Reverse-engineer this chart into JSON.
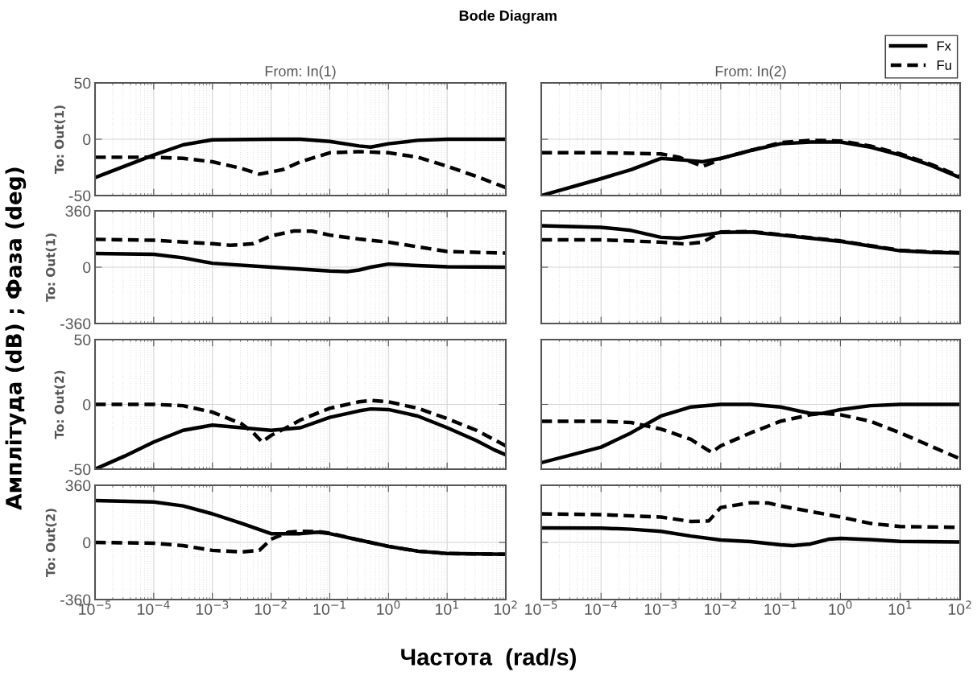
{
  "chart_data": [
    {
      "type": "line",
      "title": "From: In(1)",
      "ylabel": "To: Out(1)",
      "annotations": [
        "Bode Diagram",
        "Амплітуда (dB) ; Фаза (deg)",
        "Частота  (rad/s)"
      ],
      "log": "x",
      "grid": true,
      "tick_labels": "y",
      "xlim": [
        1e-05,
        100
      ],
      "xticks": [
        {
          "value": 1e-05,
          "label": null
        },
        {
          "value": 0.0001,
          "label": null
        },
        {
          "value": 0.001,
          "label": null
        },
        {
          "value": 0.01,
          "label": null
        },
        {
          "value": 0.1,
          "label": null
        },
        {
          "value": 1,
          "label": null
        },
        {
          "value": 10,
          "label": null
        },
        {
          "value": 100,
          "label": null
        }
      ],
      "ylim": [
        -50,
        50
      ],
      "yticks": [
        -50,
        0,
        50
      ],
      "series": [
        {
          "color": "#000000",
          "line_style": "solid",
          "x": [
            1e-05,
            3.16e-05,
            0.0001,
            0.000316,
            0.001,
            0.01,
            0.0316,
            0.1,
            0.316,
            0.5,
            1,
            3.16,
            10,
            100
          ],
          "values": [
            -34,
            -24,
            -14,
            -5,
            -0.5,
            0,
            0,
            -2,
            -6,
            -7,
            -4,
            -1,
            0,
            0
          ]
        },
        {
          "color": "#000000",
          "line_style": "dashed",
          "x": [
            1e-05,
            0.0001,
            0.000316,
            0.001,
            0.00316,
            0.0063,
            0.0158,
            0.0316,
            0.1,
            0.316,
            1,
            3.16,
            10,
            31.6,
            63,
            100
          ],
          "values": [
            -16,
            -16,
            -17,
            -20,
            -26,
            -31,
            -27,
            -20,
            -12,
            -11,
            -12,
            -16,
            -24,
            -33,
            -39,
            -43
          ]
        }
      ]
    },
    {
      "type": "line",
      "title": "From: In(2)",
      "legend": "top right",
      "log": "x",
      "grid": true,
      "tick_labels": false,
      "xlim": [
        1e-05,
        100
      ],
      "xticks": [
        {
          "value": 1e-05,
          "label": null
        },
        {
          "value": 0.0001,
          "label": null
        },
        {
          "value": 0.001,
          "label": null
        },
        {
          "value": 0.01,
          "label": null
        },
        {
          "value": 0.1,
          "label": null
        },
        {
          "value": 1,
          "label": null
        },
        {
          "value": 10,
          "label": null
        },
        {
          "value": 100,
          "label": null
        }
      ],
      "ylim": [
        -50,
        50
      ],
      "yticks": [
        {
          "value": -50,
          "label": null
        },
        {
          "value": 0,
          "label": null
        },
        {
          "value": 50,
          "label": null
        }
      ],
      "series": [
        {
          "name": "Fx",
          "color": "#000000",
          "line_style": "solid",
          "x": [
            1e-05,
            0.0001,
            0.000316,
            0.001,
            0.00316,
            0.005,
            0.01,
            0.0316,
            0.1,
            0.316,
            1,
            3.16,
            10,
            31.6,
            100
          ],
          "values": [
            -50,
            -35,
            -27,
            -17,
            -19,
            -20,
            -17,
            -10,
            -4,
            -2.5,
            -2.5,
            -7,
            -14,
            -23,
            -34
          ]
        },
        {
          "name": "Fu",
          "color": "#000000",
          "line_style": "dashed",
          "x": [
            1e-05,
            0.0001,
            0.001,
            0.002,
            0.005,
            0.0079,
            0.01,
            0.0316,
            0.1,
            0.316,
            1,
            3.16,
            10,
            31.6,
            100
          ],
          "values": [
            -12,
            -12,
            -13,
            -16,
            -24,
            -20,
            -17,
            -10,
            -3,
            -1,
            -1.5,
            -6,
            -13,
            -22,
            -33
          ]
        }
      ]
    },
    {
      "type": "line",
      "ylabel": "To: Out(1)",
      "log": "x",
      "grid": true,
      "tick_labels": "y",
      "xlim": [
        1e-05,
        100
      ],
      "xticks": [
        {
          "value": 1e-05,
          "label": null
        },
        {
          "value": 0.0001,
          "label": null
        },
        {
          "value": 0.001,
          "label": null
        },
        {
          "value": 0.01,
          "label": null
        },
        {
          "value": 0.1,
          "label": null
        },
        {
          "value": 1,
          "label": null
        },
        {
          "value": 10,
          "label": null
        },
        {
          "value": 100,
          "label": null
        }
      ],
      "ylim": [
        -360,
        360
      ],
      "yticks": [
        -360,
        0,
        360
      ],
      "series": [
        {
          "color": "#000000",
          "line_style": "solid",
          "x": [
            1e-05,
            0.0001,
            0.000316,
            0.001,
            0.01,
            0.1,
            0.2,
            0.316,
            0.5,
            1,
            3.16,
            10,
            100
          ],
          "values": [
            87,
            82,
            60,
            25,
            0,
            -24,
            -28,
            -18,
            0,
            20,
            10,
            3,
            0
          ]
        },
        {
          "color": "#000000",
          "line_style": "dashed",
          "x": [
            1e-05,
            0.0001,
            0.001,
            0.002,
            0.005,
            0.01,
            0.025,
            0.05,
            0.1,
            0.316,
            1,
            3.16,
            10,
            100
          ],
          "values": [
            178,
            172,
            150,
            140,
            150,
            200,
            232,
            230,
            205,
            180,
            160,
            130,
            100,
            90
          ]
        }
      ]
    },
    {
      "type": "line",
      "log": "x",
      "grid": true,
      "tick_labels": false,
      "xlim": [
        1e-05,
        100
      ],
      "xticks": [
        {
          "value": 1e-05,
          "label": null
        },
        {
          "value": 0.0001,
          "label": null
        },
        {
          "value": 0.001,
          "label": null
        },
        {
          "value": 0.01,
          "label": null
        },
        {
          "value": 0.1,
          "label": null
        },
        {
          "value": 1,
          "label": null
        },
        {
          "value": 10,
          "label": null
        },
        {
          "value": 100,
          "label": null
        }
      ],
      "ylim": [
        -360,
        360
      ],
      "yticks": [
        {
          "value": -360,
          "label": null
        },
        {
          "value": 0,
          "label": null
        },
        {
          "value": 360,
          "label": null
        }
      ],
      "series": [
        {
          "color": "#000000",
          "line_style": "solid",
          "x": [
            1e-05,
            0.0001,
            0.000316,
            0.001,
            0.002,
            0.005,
            0.01,
            0.0316,
            0.1,
            0.316,
            1,
            3.16,
            10,
            31.6,
            100
          ],
          "values": [
            265,
            255,
            235,
            191,
            185,
            205,
            222,
            225,
            205,
            185,
            165,
            135,
            105,
            95,
            90
          ]
        },
        {
          "color": "#000000",
          "line_style": "dashed",
          "x": [
            1e-05,
            0.0001,
            0.001,
            0.0025,
            0.005,
            0.01,
            0.0316,
            0.1,
            0.316,
            1,
            3.16,
            10,
            31.6,
            100
          ],
          "values": [
            175,
            175,
            160,
            148,
            160,
            225,
            228,
            208,
            188,
            168,
            138,
            108,
            98,
            93
          ]
        }
      ]
    },
    {
      "type": "line",
      "ylabel": "To: Out(2)",
      "log": "x",
      "grid": true,
      "tick_labels": "y",
      "xlim": [
        1e-05,
        100
      ],
      "xticks": [
        {
          "value": 1e-05,
          "label": null
        },
        {
          "value": 0.0001,
          "label": null
        },
        {
          "value": 0.001,
          "label": null
        },
        {
          "value": 0.01,
          "label": null
        },
        {
          "value": 0.1,
          "label": null
        },
        {
          "value": 1,
          "label": null
        },
        {
          "value": 10,
          "label": null
        },
        {
          "value": 100,
          "label": null
        }
      ],
      "ylim": [
        -50,
        50
      ],
      "yticks": [
        -50,
        0,
        50
      ],
      "series": [
        {
          "color": "#000000",
          "line_style": "solid",
          "x": [
            1e-05,
            3.16e-05,
            0.0001,
            0.000316,
            0.001,
            0.00316,
            0.01,
            0.0316,
            0.1,
            0.316,
            0.5,
            1,
            3.16,
            10,
            31.6,
            63,
            100
          ],
          "values": [
            -50,
            -40,
            -29,
            -20,
            -16,
            -18,
            -20,
            -18,
            -10,
            -5,
            -3.5,
            -4,
            -9,
            -18,
            -28,
            -35,
            -39
          ]
        },
        {
          "color": "#000000",
          "line_style": "dashed",
          "x": [
            1e-05,
            0.0001,
            0.000316,
            0.001,
            0.00316,
            0.005,
            0.007,
            0.01,
            0.02,
            0.0316,
            0.1,
            0.316,
            0.5,
            1,
            3.16,
            10,
            31.6,
            100
          ],
          "values": [
            0,
            0,
            -1,
            -6,
            -15,
            -22,
            -29,
            -24,
            -17,
            -12,
            -3,
            2,
            3,
            2,
            -3,
            -11,
            -20,
            -32
          ]
        }
      ]
    },
    {
      "type": "line",
      "log": "x",
      "grid": true,
      "tick_labels": false,
      "xlim": [
        1e-05,
        100
      ],
      "xticks": [
        {
          "value": 1e-05,
          "label": null
        },
        {
          "value": 0.0001,
          "label": null
        },
        {
          "value": 0.001,
          "label": null
        },
        {
          "value": 0.01,
          "label": null
        },
        {
          "value": 0.1,
          "label": null
        },
        {
          "value": 1,
          "label": null
        },
        {
          "value": 10,
          "label": null
        },
        {
          "value": 100,
          "label": null
        }
      ],
      "ylim": [
        -50,
        50
      ],
      "yticks": [
        {
          "value": -50,
          "label": null
        },
        {
          "value": 0,
          "label": null
        },
        {
          "value": 50,
          "label": null
        }
      ],
      "series": [
        {
          "color": "#000000",
          "line_style": "solid",
          "x": [
            1e-05,
            0.0001,
            0.000316,
            0.001,
            0.00316,
            0.01,
            0.0316,
            0.1,
            0.316,
            0.5,
            1,
            3.16,
            10,
            100
          ],
          "values": [
            -45,
            -33,
            -22,
            -9,
            -2,
            0,
            0,
            -2,
            -7,
            -7,
            -4,
            -1,
            0,
            0
          ]
        },
        {
          "color": "#000000",
          "line_style": "dashed",
          "x": [
            1e-05,
            0.0001,
            0.000316,
            0.001,
            0.00316,
            0.007,
            0.01,
            0.0316,
            0.1,
            0.316,
            0.5,
            1,
            3.16,
            10,
            31.6,
            100
          ],
          "values": [
            -13,
            -13,
            -14,
            -19,
            -27,
            -37,
            -32,
            -22,
            -13,
            -8,
            -7,
            -8,
            -13,
            -22,
            -32,
            -42
          ]
        }
      ]
    },
    {
      "type": "line",
      "ylabel": "To: Out(2)",
      "log": "x",
      "grid": true,
      "xlim": [
        1e-05,
        100
      ],
      "xticks": [
        {
          "value": 1e-05,
          "label": "10$^{−5}$"
        },
        {
          "value": 0.0001,
          "label": "10$^{−4}$"
        },
        {
          "value": 0.001,
          "label": "10$^{−3}$"
        },
        {
          "value": 0.01,
          "label": "10$^{−2}$"
        },
        {
          "value": 0.1,
          "label": "10$^{−1}$"
        },
        {
          "value": 1,
          "label": "10$^{0}$"
        },
        {
          "value": 10,
          "label": "10$^{1}$"
        },
        {
          "value": 100,
          "label": "10$^{2}$"
        }
      ],
      "ylim": [
        -360,
        360
      ],
      "yticks": [
        -360,
        0,
        360
      ],
      "series": [
        {
          "color": "#000000",
          "line_style": "solid",
          "x": [
            1e-05,
            0.0001,
            0.000316,
            0.001,
            0.00316,
            0.01,
            0.0316,
            0.063,
            0.1,
            0.316,
            1,
            3.16,
            10,
            100
          ],
          "values": [
            264,
            255,
            230,
            180,
            120,
            55,
            55,
            65,
            55,
            15,
            -25,
            -55,
            -70,
            -75
          ]
        },
        {
          "color": "#000000",
          "line_style": "dashed",
          "x": [
            1e-05,
            0.0001,
            0.000316,
            0.001,
            0.00316,
            0.0063,
            0.01,
            0.02,
            0.0316,
            0.063,
            0.1,
            0.316,
            1,
            3.16,
            10,
            100
          ],
          "values": [
            0,
            -5,
            -20,
            -50,
            -60,
            -50,
            20,
            65,
            70,
            68,
            58,
            15,
            -25,
            -55,
            -70,
            -75
          ]
        }
      ]
    },
    {
      "type": "line",
      "log": "x",
      "grid": true,
      "tick_labels": "x",
      "xlim": [
        1e-05,
        100
      ],
      "xticks": [
        {
          "value": 1e-05,
          "label": "10$^{−5}$"
        },
        {
          "value": 0.0001,
          "label": "10$^{−4}$"
        },
        {
          "value": 0.001,
          "label": "10$^{−3}$"
        },
        {
          "value": 0.01,
          "label": "10$^{−2}$"
        },
        {
          "value": 0.1,
          "label": "10$^{−1}$"
        },
        {
          "value": 1,
          "label": "10$^{0}$"
        },
        {
          "value": 10,
          "label": "10$^{1}$"
        },
        {
          "value": 100,
          "label": "10$^{2}$"
        }
      ],
      "ylim": [
        -360,
        360
      ],
      "yticks": [
        {
          "value": -360,
          "label": null
        },
        {
          "value": 0,
          "label": null
        },
        {
          "value": 360,
          "label": null
        }
      ],
      "series": [
        {
          "color": "#000000",
          "line_style": "solid",
          "x": [
            1e-05,
            0.0001,
            0.000316,
            0.001,
            0.00316,
            0.01,
            0.0316,
            0.1,
            0.16,
            0.316,
            0.63,
            1,
            3.16,
            10,
            100
          ],
          "values": [
            91,
            90,
            83,
            70,
            40,
            15,
            5,
            -15,
            -20,
            -10,
            20,
            25,
            18,
            6,
            3
          ]
        },
        {
          "color": "#000000",
          "line_style": "dashed",
          "x": [
            1e-05,
            0.0001,
            0.001,
            0.00316,
            0.0063,
            0.01,
            0.0316,
            0.063,
            0.1,
            0.316,
            1,
            3.16,
            10,
            100
          ],
          "values": [
            180,
            175,
            160,
            132,
            135,
            220,
            250,
            248,
            230,
            195,
            160,
            120,
            100,
            95
          ]
        }
      ]
    }
  ]
}
